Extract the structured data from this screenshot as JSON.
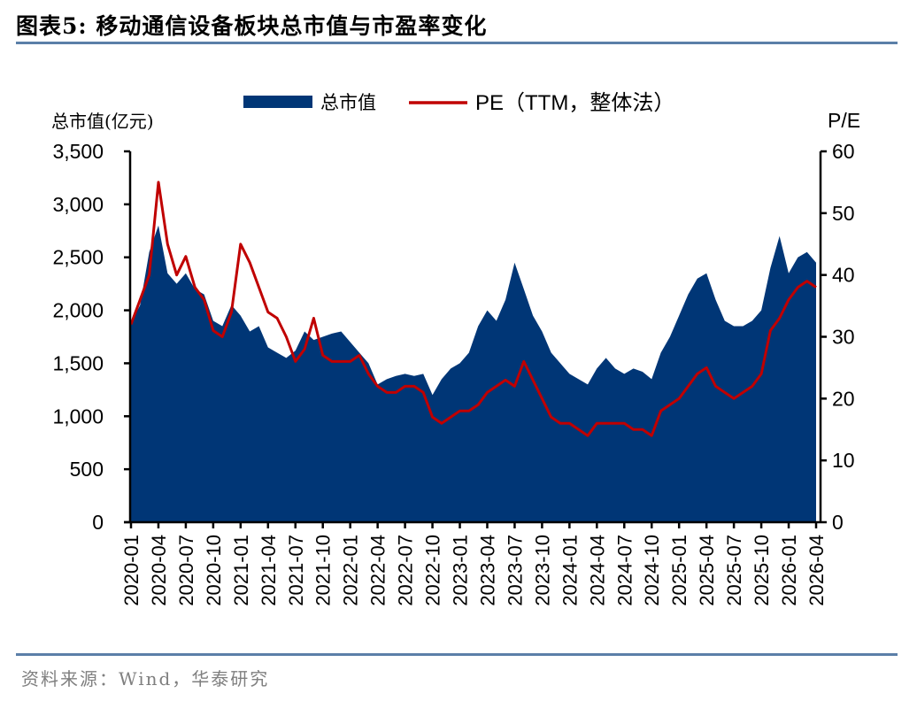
{
  "header": {
    "title": "图表5:   移动通信设备板块总市值与市盈率变化"
  },
  "footer": {
    "source": "资料来源：Wind，华泰研究"
  },
  "colors": {
    "market_cap": "#003676",
    "pe": "#c00000",
    "rule": "#5b7fa8",
    "source_text": "#7f7f7f"
  },
  "chart_data": {
    "type": "area+line",
    "title": "移动通信设备板块总市值与市盈率变化",
    "ylabel_left": "总市值(亿元)",
    "ylabel_right": "P/E",
    "ylim_left": [
      0,
      3500
    ],
    "ylim_right": [
      0,
      60
    ],
    "yticks_left": [
      "0",
      "500",
      "1,000",
      "1,500",
      "2,000",
      "2,500",
      "3,000",
      "3,500"
    ],
    "yticks_left_values": [
      0,
      500,
      1000,
      1500,
      2000,
      2500,
      3000,
      3500
    ],
    "yticks_right": [
      "0",
      "10",
      "20",
      "30",
      "40",
      "50",
      "60"
    ],
    "yticks_right_values": [
      0,
      10,
      20,
      30,
      40,
      50,
      60
    ],
    "xticks": [
      "2020-01",
      "2020-04",
      "2020-07",
      "2020-10",
      "2021-01",
      "2021-04",
      "2021-07",
      "2021-10",
      "2022-01",
      "2022-04",
      "2022-07",
      "2022-10",
      "2023-01",
      "2023-04",
      "2023-07",
      "2023-10",
      "2024-01",
      "2024-04",
      "2024-07",
      "2024-10",
      "2025-01",
      "2025-04",
      "2025-07",
      "2025-10",
      "2026-01",
      "2026-04"
    ],
    "legend": [
      "总市值",
      "PE（TTM，整体法）"
    ],
    "legend_position": "top-center",
    "grid": false,
    "x": [
      "2020-01",
      "2020-02",
      "2020-03",
      "2020-04",
      "2020-05",
      "2020-06",
      "2020-07",
      "2020-08",
      "2020-09",
      "2020-10",
      "2020-11",
      "2020-12",
      "2021-01",
      "2021-02",
      "2021-03",
      "2021-04",
      "2021-05",
      "2021-06",
      "2021-07",
      "2021-08",
      "2021-09",
      "2021-10",
      "2021-11",
      "2021-12",
      "2022-01",
      "2022-02",
      "2022-03",
      "2022-04",
      "2022-05",
      "2022-06",
      "2022-07",
      "2022-08",
      "2022-09",
      "2022-10",
      "2022-11",
      "2022-12",
      "2023-01",
      "2023-02",
      "2023-03",
      "2023-04",
      "2023-05",
      "2023-06",
      "2023-07",
      "2023-08",
      "2023-09",
      "2023-10",
      "2023-11",
      "2023-12",
      "2024-01",
      "2024-02",
      "2024-03",
      "2024-04",
      "2024-05",
      "2024-06",
      "2024-07",
      "2024-08",
      "2024-09",
      "2024-10",
      "2024-11",
      "2024-12",
      "2025-01",
      "2025-02",
      "2025-03",
      "2025-04",
      "2025-05",
      "2025-06",
      "2025-07",
      "2025-08",
      "2025-09",
      "2025-10",
      "2025-11",
      "2025-12",
      "2026-01",
      "2026-02",
      "2026-03",
      "2026-04"
    ],
    "series": [
      {
        "name": "总市值",
        "axis": "left",
        "kind": "area",
        "values": [
          1880,
          2050,
          2550,
          2800,
          2350,
          2250,
          2350,
          2200,
          2150,
          1900,
          1850,
          2050,
          1950,
          1800,
          1850,
          1650,
          1600,
          1550,
          1620,
          1800,
          1720,
          1750,
          1780,
          1800,
          1700,
          1600,
          1500,
          1300,
          1350,
          1380,
          1400,
          1380,
          1400,
          1200,
          1350,
          1450,
          1500,
          1600,
          1850,
          2000,
          1900,
          2100,
          2450,
          2200,
          1950,
          1800,
          1600,
          1500,
          1400,
          1350,
          1300,
          1450,
          1550,
          1450,
          1400,
          1450,
          1420,
          1350,
          1600,
          1750,
          1950,
          2150,
          2300,
          2350,
          2100,
          1900,
          1850,
          1850,
          1900,
          2000,
          2400,
          2700,
          2350,
          2500,
          2550,
          2450
        ]
      },
      {
        "name": "PE（TTM，整体法）",
        "axis": "right",
        "kind": "line",
        "values": [
          32,
          36,
          40,
          55,
          45,
          40,
          43,
          38,
          36,
          31,
          30,
          34,
          45,
          42,
          38,
          34,
          33,
          30,
          26,
          28,
          33,
          27,
          26,
          26,
          26,
          27,
          24,
          22,
          21,
          21,
          22,
          22,
          21,
          17,
          16,
          17,
          18,
          18,
          19,
          21,
          22,
          23,
          22,
          26,
          23,
          20,
          17,
          16,
          16,
          15,
          14,
          16,
          16,
          16,
          16,
          15,
          15,
          14,
          18,
          19,
          20,
          22,
          24,
          25,
          22,
          21,
          20,
          21,
          22,
          24,
          31,
          33,
          36,
          38,
          39,
          38
        ]
      }
    ]
  }
}
